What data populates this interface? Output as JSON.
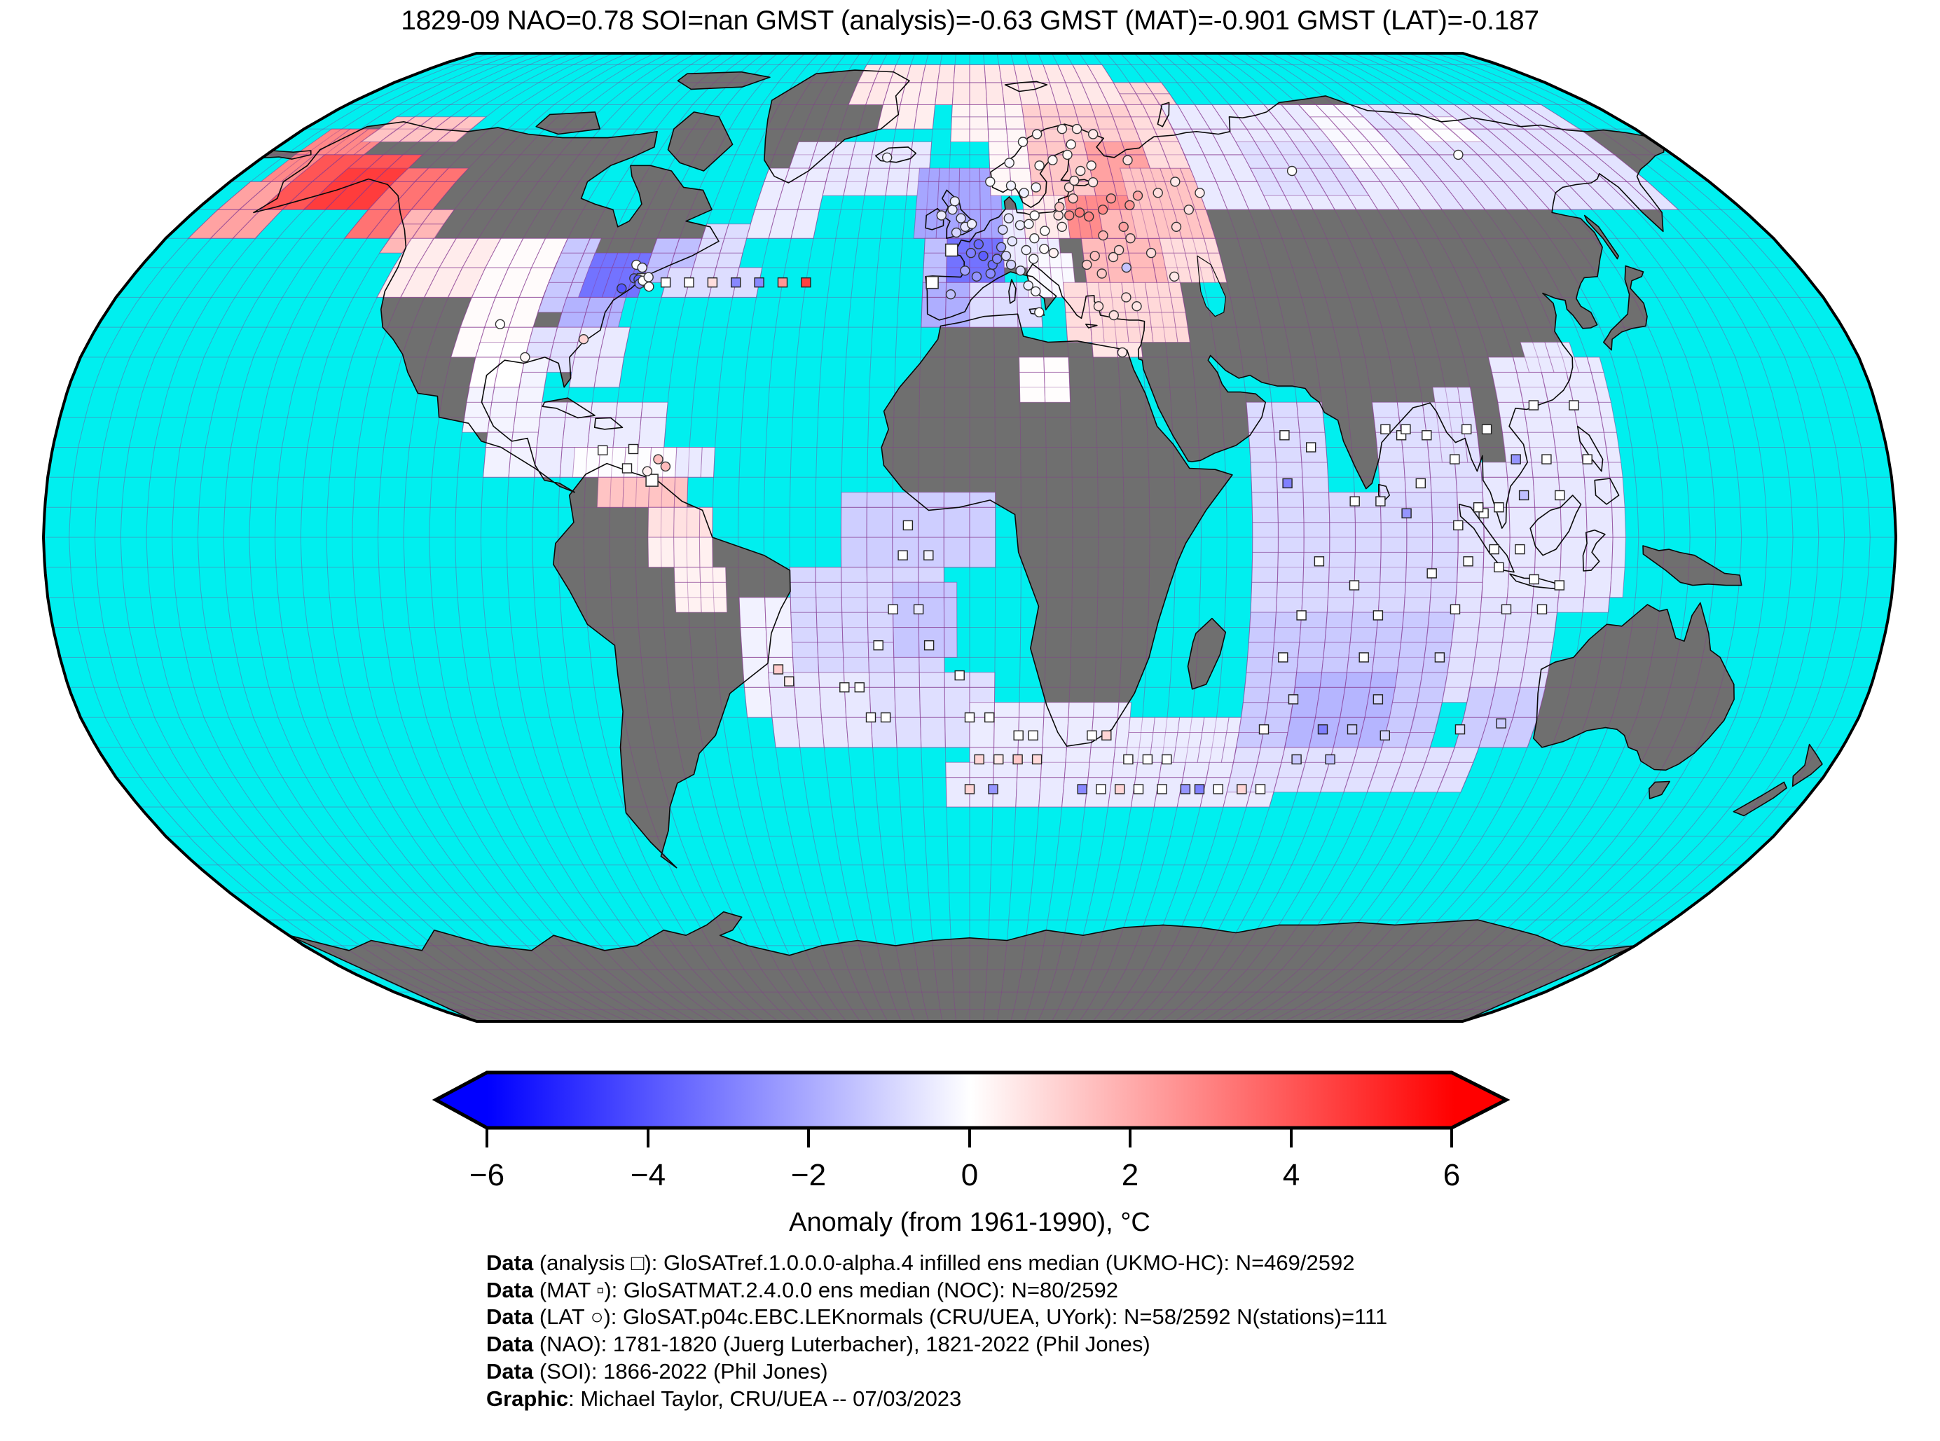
{
  "title": "1829-09 NAO=0.78 SOI=nan GMST (analysis)=-0.63 GMST (MAT)=-0.901 GMST (LAT)=-0.187",
  "colorbar": {
    "label": "Anomaly (from 1961-1990), °C",
    "tick_labels": [
      "−6",
      "−4",
      "−2",
      "0",
      "2",
      "4",
      "6"
    ],
    "vmin": -6,
    "vmax": 6,
    "neg_color": "#0000ff",
    "zero_color": "#ffffff",
    "pos_color": "#ff0000"
  },
  "caption_lines": [
    {
      "prefix": "Data",
      "text": " (analysis □): GloSATref.1.0.0.0-alpha.4 infilled ens median (UKMO-HC): N=469/2592"
    },
    {
      "prefix": "Data",
      "text": " (MAT ▫): GloSATMAT.2.4.0.0 ens median (NOC): N=80/2592"
    },
    {
      "prefix": "Data",
      "text": " (LAT ○): GloSAT.p04c.EBC.LEKnormals (CRU/UEA, UYork): N=58/2592 N(stations)=111"
    },
    {
      "prefix": "Data",
      "text": " (NAO): 1781-1820 (Juerg Luterbacher), 1821-2022 (Phil Jones)"
    },
    {
      "prefix": "Data",
      "text": " (SOI): 1866-2022 (Phil Jones)"
    },
    {
      "prefix": "Graphic",
      "text": ": Michael Taylor, CRU/UEA -- 07/03/2023"
    }
  ],
  "chart_data": {
    "type": "heatmap",
    "projection": "robinson",
    "month": "1829-09",
    "nao": 0.78,
    "soi": "nan",
    "gmst_analysis": -0.63,
    "gmst_mat": -0.901,
    "gmst_lat": -0.187,
    "grid_deg": 5,
    "ocean_color": "#00EFEF",
    "land_color": "#6F6F6F",
    "coast_color": "#0a0a0a",
    "graticule_color": "rgba(135,55,145,0.40)",
    "cell_edge_color": "rgba(135,55,145,0.50)",
    "anomaly_patches": [
      [
        -35,
        75,
        45,
        85,
        0.55
      ],
      [
        15,
        67.5,
        45,
        75,
        1.1
      ],
      [
        -5,
        67.5,
        15,
        75,
        0.25
      ],
      [
        45,
        67.5,
        60,
        80,
        0.9
      ],
      [
        -25,
        70,
        -10,
        80,
        0.4
      ],
      [
        -45,
        57.5,
        -10,
        67.5,
        -0.55
      ],
      [
        -50,
        50,
        -35,
        62.5,
        -0.45
      ],
      [
        -12.5,
        50,
        7.5,
        62.5,
        -2.1
      ],
      [
        -10,
        42.5,
        -5,
        50,
        -1.5
      ],
      [
        -10,
        35,
        0,
        42.5,
        -1.9
      ],
      [
        0,
        35,
        15,
        42.5,
        -0.8
      ],
      [
        -5,
        42.5,
        7.5,
        50,
        -3.3
      ],
      [
        7.5,
        45,
        20,
        55,
        -0.45
      ],
      [
        12.5,
        40,
        22.5,
        47.5,
        -0.15
      ],
      [
        20,
        32.5,
        32.5,
        42.5,
        0.8
      ],
      [
        27.5,
        32.5,
        45,
        42.5,
        0.9
      ],
      [
        25,
        42.5,
        42.5,
        50,
        1.6
      ],
      [
        5,
        57.5,
        15,
        70,
        0.2
      ],
      [
        15,
        55,
        30,
        67.5,
        1.3
      ],
      [
        12.5,
        50,
        22.5,
        57.5,
        0.5
      ],
      [
        30,
        55,
        45,
        67.5,
        2.2
      ],
      [
        22.5,
        50,
        37.5,
        57.5,
        2.7
      ],
      [
        30,
        50,
        45,
        55,
        1.7
      ],
      [
        37.5,
        50,
        55,
        62.5,
        1.4
      ],
      [
        45,
        62.5,
        60,
        75,
        0.8
      ],
      [
        42.5,
        42.5,
        55,
        50,
        0.8
      ],
      [
        10,
        22.5,
        20,
        30,
        0.05
      ],
      [
        25,
        30,
        35,
        32.5,
        0.6
      ],
      [
        55,
        55,
        110,
        75,
        -0.5
      ],
      [
        70,
        57.5,
        95,
        67.5,
        -0.75
      ],
      [
        95,
        62.5,
        110,
        75,
        -0.15
      ],
      [
        110,
        55,
        165,
        75,
        -0.65
      ],
      [
        120,
        67.5,
        135,
        72.5,
        -0.05
      ],
      [
        -175,
        50,
        -160,
        60,
        2.2
      ],
      [
        -172.5,
        60,
        -155,
        70,
        2.8
      ],
      [
        -165,
        55,
        -140,
        65,
        4.0
      ],
      [
        -155,
        55,
        -140,
        62.5,
        4.6
      ],
      [
        -140,
        50,
        -125,
        62.5,
        3.3
      ],
      [
        -160,
        67.5,
        -135,
        72.5,
        1.4
      ],
      [
        -130,
        47.5,
        -120,
        55,
        1.7
      ],
      [
        -125,
        40,
        -105,
        50,
        0.45
      ],
      [
        -105,
        30,
        -90,
        50,
        0.1
      ],
      [
        -90,
        37.5,
        -82.5,
        50,
        -1.3
      ],
      [
        -85,
        32.5,
        -72.5,
        40,
        -1.8
      ],
      [
        -82.5,
        40,
        -70,
        47.5,
        -3.3
      ],
      [
        -90,
        27.5,
        -80,
        35,
        -0.7
      ],
      [
        -70,
        42.5,
        -60,
        50,
        -1.5
      ],
      [
        -60,
        42.5,
        -50,
        52.5,
        -0.8
      ],
      [
        -65,
        40,
        -45,
        45,
        -0.8
      ],
      [
        -80,
        25,
        -70,
        35,
        -0.5
      ],
      [
        -100,
        17.5,
        -85,
        30,
        -0.25
      ],
      [
        -100,
        25,
        -90,
        32.5,
        0.0
      ],
      [
        -85,
        10,
        -60,
        22.5,
        -0.45
      ],
      [
        -95,
        10,
        -85,
        17.5,
        -0.3
      ],
      [
        -77.5,
        10,
        -57.5,
        15,
        -0.05
      ],
      [
        -57.5,
        10,
        -50,
        15,
        -0.5
      ],
      [
        -72.5,
        5,
        -55,
        10,
        1.4
      ],
      [
        -62.5,
        0,
        -50,
        5,
        0.7
      ],
      [
        -62.5,
        -5,
        -50,
        0,
        0.35
      ],
      [
        -57.5,
        -12.5,
        -47.5,
        -5,
        0.3
      ],
      [
        -45,
        -30,
        -35,
        -10,
        -0.3
      ],
      [
        -25,
        -5,
        5,
        7.5,
        -1.15
      ],
      [
        -35,
        -22.5,
        -5,
        -5,
        -0.95
      ],
      [
        -15,
        -20,
        -2.5,
        -7.5,
        -1.35
      ],
      [
        -40,
        -35,
        -20,
        -22.5,
        -0.55
      ],
      [
        -20,
        -35,
        5,
        -22.5,
        -0.75
      ],
      [
        0,
        -40,
        32.5,
        -27.5,
        -0.45
      ],
      [
        -5,
        -45,
        65,
        -37.5,
        -0.5
      ],
      [
        32.5,
        -37.5,
        55,
        -30,
        -0.45
      ],
      [
        55,
        7.5,
        70,
        22.5,
        -0.85
      ],
      [
        80,
        7.5,
        100,
        22.5,
        -0.75
      ],
      [
        55,
        -12.5,
        100,
        7.5,
        -0.9
      ],
      [
        55,
        -37.5,
        95,
        -12.5,
        -1.25
      ],
      [
        65,
        -35,
        85,
        -22.5,
        -1.75
      ],
      [
        55,
        -42.5,
        105,
        -35,
        -0.7
      ],
      [
        95,
        -27.5,
        115,
        -10,
        -0.7
      ],
      [
        100,
        -35,
        115,
        -25,
        -1.2
      ],
      [
        95,
        -12.5,
        125,
        7.5,
        -0.65
      ],
      [
        92.5,
        12.5,
        100,
        25,
        -0.7
      ],
      [
        100,
        -10,
        127.5,
        12.5,
        -0.55
      ],
      [
        105,
        12.5,
        127.5,
        30,
        -0.5
      ],
      [
        112.5,
        27.5,
        122.5,
        32.5,
        -0.5
      ]
    ],
    "mat_squares": [
      [
        -70,
        42.5,
        -0.2
      ],
      [
        -65,
        42.5,
        0
      ],
      [
        -60,
        42.5,
        0
      ],
      [
        -55,
        42.5,
        0.8
      ],
      [
        -50,
        42.5,
        -2.8
      ],
      [
        -45,
        42.5,
        -2.8
      ],
      [
        -40,
        42.5,
        2.5
      ],
      [
        -35,
        42.5,
        4.5
      ],
      [
        -67,
        11.5,
        0
      ],
      [
        -72,
        14.5,
        0
      ],
      [
        -66,
        14.7,
        0
      ],
      [
        -12,
        2,
        0
      ],
      [
        -8,
        -3,
        -0.3
      ],
      [
        -13,
        -3,
        0
      ],
      [
        -15,
        -12,
        0
      ],
      [
        -10,
        -12,
        -0.5
      ],
      [
        -18,
        -18,
        0
      ],
      [
        -8,
        -18,
        -0.3
      ],
      [
        -25,
        -25,
        0
      ],
      [
        -22,
        -25,
        0
      ],
      [
        -2,
        -23,
        0
      ],
      [
        -20,
        -30,
        0
      ],
      [
        -17,
        -30,
        0
      ],
      [
        0,
        -30,
        0
      ],
      [
        4,
        -30,
        0
      ],
      [
        -38,
        -22,
        1.2
      ],
      [
        -36,
        -24,
        0.4
      ],
      [
        10,
        -33,
        0
      ],
      [
        13,
        -33,
        0
      ],
      [
        25,
        -33,
        0
      ],
      [
        28,
        -33,
        1
      ],
      [
        2,
        -37,
        1
      ],
      [
        6,
        -37,
        0.5
      ],
      [
        10,
        -37,
        1.3
      ],
      [
        14,
        -37,
        0.9
      ],
      [
        33,
        -37,
        0
      ],
      [
        37,
        -37,
        0
      ],
      [
        41,
        -37,
        0
      ],
      [
        0,
        -42,
        1
      ],
      [
        5,
        -42,
        -2.5
      ],
      [
        24,
        -42,
        -2.8
      ],
      [
        28,
        -42,
        0
      ],
      [
        32,
        -42,
        1
      ],
      [
        36,
        -42,
        0
      ],
      [
        41,
        -42,
        0
      ],
      [
        46,
        -42,
        -2.5
      ],
      [
        49,
        -42,
        -3
      ],
      [
        53,
        -42,
        0
      ],
      [
        58,
        -42,
        1
      ],
      [
        62,
        -42,
        0
      ],
      [
        62,
        17,
        0
      ],
      [
        67,
        15,
        0
      ],
      [
        85,
        17,
        0
      ],
      [
        90,
        17,
        0
      ],
      [
        62,
        9,
        -3
      ],
      [
        75,
        6,
        0
      ],
      [
        80,
        6,
        -0.3
      ],
      [
        88,
        9,
        0
      ],
      [
        85,
        4,
        -2.5
      ],
      [
        95,
        2,
        0
      ],
      [
        100,
        4,
        0
      ],
      [
        68,
        -4,
        0
      ],
      [
        75,
        -8,
        0
      ],
      [
        90,
        -6,
        0
      ],
      [
        97,
        -4,
        0
      ],
      [
        103,
        -5,
        0
      ],
      [
        65,
        -13,
        0
      ],
      [
        80,
        -13,
        0
      ],
      [
        95,
        -12,
        0
      ],
      [
        105,
        -12,
        -0.4
      ],
      [
        62,
        -20,
        0
      ],
      [
        78,
        -20,
        0
      ],
      [
        93,
        -20,
        -0.5
      ],
      [
        65,
        -27,
        -0.6
      ],
      [
        82,
        -27,
        -1
      ],
      [
        60,
        -32,
        0.1
      ],
      [
        72,
        -32,
        -3
      ],
      [
        78,
        -32,
        -1.2
      ],
      [
        85,
        -33,
        -1
      ],
      [
        100,
        -32,
        -0.8
      ],
      [
        108,
        -31,
        -1.2
      ],
      [
        68,
        -37,
        -1.3
      ],
      [
        75,
        -37,
        -1.5
      ],
      [
        82,
        18,
        0
      ],
      [
        86,
        18,
        0
      ],
      [
        98,
        18,
        0
      ],
      [
        102,
        18,
        0
      ],
      [
        107,
        13,
        -2.5
      ],
      [
        95,
        13,
        0
      ],
      [
        112,
        22,
        0
      ],
      [
        120,
        22,
        0
      ],
      [
        113,
        13,
        0
      ],
      [
        121,
        13,
        0
      ],
      [
        108,
        7,
        -1.5
      ],
      [
        115,
        7,
        0
      ],
      [
        99,
        5,
        0
      ],
      [
        103,
        5,
        0
      ],
      [
        102,
        -2,
        0
      ],
      [
        107,
        -2,
        0
      ],
      [
        110,
        -7,
        0
      ],
      [
        115,
        -8,
        0
      ],
      [
        112,
        -12,
        0
      ]
    ],
    "lat_circles": [
      [
        -72.5,
        45.5,
        0
      ],
      [
        -71,
        45,
        -0.5
      ],
      [
        -72,
        43.2,
        -3.5
      ],
      [
        -71,
        43,
        -3.8
      ],
      [
        -70.5,
        42.3,
        -3
      ],
      [
        -74,
        41.5,
        -4
      ],
      [
        -70,
        42.8,
        0
      ],
      [
        -69,
        43.4,
        -0.3
      ],
      [
        -68.3,
        41.8,
        0
      ],
      [
        -79,
        33,
        1
      ],
      [
        -97,
        35.5,
        0
      ],
      [
        -90,
        30,
        0.2
      ],
      [
        -61,
        13,
        1.5
      ],
      [
        -59.5,
        11.8,
        1.6
      ],
      [
        -63,
        11,
        0.4
      ],
      [
        -21,
        64.5,
        -0.3
      ],
      [
        -3,
        51,
        -1
      ],
      [
        -1,
        52,
        -0.6
      ],
      [
        -2,
        53.5,
        -0.8
      ],
      [
        -4,
        55,
        -0.5
      ],
      [
        -3.5,
        56.5,
        -0.4
      ],
      [
        0.5,
        52.5,
        -0.4
      ],
      [
        -6.5,
        54,
        -0.5
      ],
      [
        2,
        49,
        -3.5
      ],
      [
        3,
        47,
        -3.8
      ],
      [
        5,
        45.5,
        -3.4
      ],
      [
        0.3,
        47.5,
        -3
      ],
      [
        4.5,
        44,
        -2.7
      ],
      [
        7,
        48.5,
        -2.3
      ],
      [
        -1,
        44.5,
        -2.2
      ],
      [
        1.5,
        43.5,
        -2.5
      ],
      [
        6,
        46.5,
        -2.8
      ],
      [
        -4,
        40.5,
        -1.5
      ],
      [
        9,
        45.5,
        -1
      ],
      [
        11,
        44.5,
        -0.8
      ],
      [
        12.5,
        42,
        -0.4
      ],
      [
        14,
        41,
        -0.2
      ],
      [
        14.5,
        37.5,
        0
      ],
      [
        7.5,
        51.5,
        -0.9
      ],
      [
        9.5,
        49.5,
        -0.6
      ],
      [
        11.5,
        52.3,
        -0.4
      ],
      [
        13.5,
        52.5,
        -0.2
      ],
      [
        9,
        53.5,
        -0.5
      ],
      [
        12.5,
        48,
        -0.3
      ],
      [
        14.5,
        50,
        -0.1
      ],
      [
        8,
        47,
        -1
      ],
      [
        16.5,
        48.2,
        0.1
      ],
      [
        14,
        46.5,
        -0.2
      ],
      [
        21,
        52,
        0.4
      ],
      [
        17,
        51.3,
        0.1
      ],
      [
        15,
        54,
        0
      ],
      [
        20.5,
        54,
        0.7
      ],
      [
        18.5,
        47.5,
        0.3
      ],
      [
        25.5,
        45.5,
        1.2
      ],
      [
        27.5,
        47,
        1.5
      ],
      [
        23,
        54,
        2.6
      ],
      [
        25.5,
        54.5,
        3.1
      ],
      [
        27.5,
        53.8,
        2.9
      ],
      [
        21,
        55.5,
        1.4
      ],
      [
        24.5,
        57,
        1.1
      ],
      [
        24,
        59,
        0.8
      ],
      [
        25.5,
        60.2,
        0.6
      ],
      [
        30,
        59.9,
        0.5
      ],
      [
        27.5,
        62,
        0.4
      ],
      [
        30.5,
        63,
        0.3
      ],
      [
        25,
        65,
        0.2
      ],
      [
        26.5,
        67,
        0.1
      ],
      [
        31,
        55,
        2.8
      ],
      [
        33.5,
        57,
        2.4
      ],
      [
        37.5,
        55.8,
        2.5
      ],
      [
        40,
        57.5,
        2.1
      ],
      [
        35,
        52,
        2.2
      ],
      [
        30,
        50.5,
        1.8
      ],
      [
        33,
        48,
        1
      ],
      [
        36,
        50,
        1.2
      ],
      [
        31.5,
        46.8,
        0.9
      ],
      [
        34,
        45,
        -1.4
      ],
      [
        28.5,
        44,
        1.3
      ],
      [
        40,
        47.5,
        0.8
      ],
      [
        44,
        43.5,
        0.5
      ],
      [
        47,
        52,
        1
      ],
      [
        51,
        55,
        0.7
      ],
      [
        55,
        58,
        0.4
      ],
      [
        50,
        60,
        0.5
      ],
      [
        45,
        58,
        0.8
      ],
      [
        40,
        64,
        0.7
      ],
      [
        33,
        69,
        0.5
      ],
      [
        29,
        70,
        0.4
      ],
      [
        25,
        70,
        0.3
      ],
      [
        18,
        69,
        0.2
      ],
      [
        14,
        67.5,
        0
      ],
      [
        10,
        63.5,
        -0.2
      ],
      [
        5,
        60,
        -0.1
      ],
      [
        10,
        59.3,
        -0.3
      ],
      [
        13,
        58,
        -0.4
      ],
      [
        16,
        59,
        -0.2
      ],
      [
        17.5,
        63,
        0.1
      ],
      [
        21,
        64,
        0.2
      ],
      [
        27,
        38.5,
        0.8
      ],
      [
        30,
        37,
        0.7
      ],
      [
        33,
        40,
        0.8
      ],
      [
        35,
        38.5,
        0.6
      ],
      [
        31,
        30.8,
        0.5
      ],
      [
        80,
        62,
        0
      ],
      [
        125,
        65,
        0
      ]
    ],
    "analysis_squares": [
      [
        -4,
        48
      ],
      [
        -8,
        42.5
      ],
      [
        -70,
        43
      ],
      [
        -62,
        9.5
      ]
    ]
  }
}
